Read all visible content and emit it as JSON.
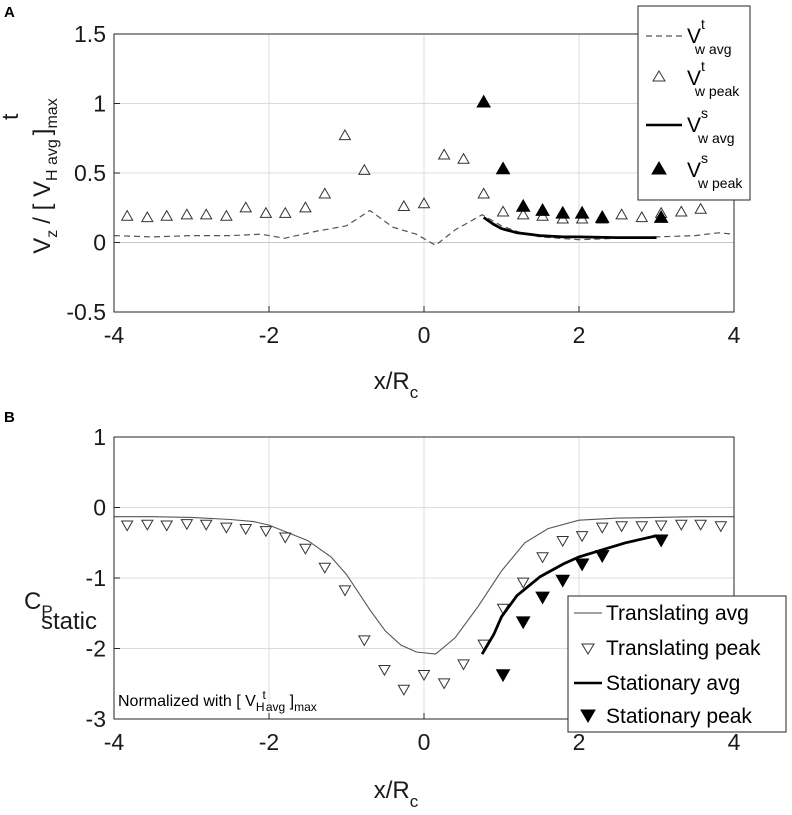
{
  "chart_data": [
    {
      "panel": "A",
      "type": "line",
      "title": "",
      "xlabel": "x/R",
      "xlabel_sub": "c",
      "ylabel": "V_z / [ V^t_H avg ]_max",
      "ylabel_parts": {
        "v": "V",
        "z_sub": "z",
        "slash": "/  [ V",
        "t_sup": "t",
        "h_sub": "H avg",
        "close": "]",
        "max_sub": "max"
      },
      "xlim": [
        -4,
        4
      ],
      "ylim": [
        -0.5,
        1.5
      ],
      "xticks": [
        -4,
        -2,
        0,
        2,
        4
      ],
      "xtick_labels": [
        "-4",
        "-2",
        "0",
        "2",
        "4"
      ],
      "yticks": [
        -0.5,
        0,
        0.5,
        1,
        1.5
      ],
      "ytick_labels": [
        "-0.5",
        "0",
        "0.5",
        "1",
        "1.5"
      ],
      "grid": true,
      "legend_position": "top-right",
      "legend": [
        {
          "key": "trans_avg",
          "base": "V",
          "sup": "t",
          "sub": "w avg"
        },
        {
          "key": "trans_peak",
          "base": "V",
          "sup": "t",
          "sub": "w peak"
        },
        {
          "key": "stat_avg",
          "base": "V",
          "sup": "s",
          "sub": "w avg"
        },
        {
          "key": "stat_peak",
          "base": "V",
          "sup": "s",
          "sub": "w peak"
        }
      ],
      "series": [
        {
          "name": "V^t_w avg",
          "style": "dashed-line",
          "x": [
            -4,
            -3.5,
            -3,
            -2.5,
            -2.1,
            -1.8,
            -1.4,
            -1.0,
            -0.7,
            -0.4,
            -0.1,
            0.15,
            0.4,
            0.75,
            1.0,
            1.25,
            1.5,
            2.0,
            2.5,
            3.0,
            3.5,
            3.8,
            4.0
          ],
          "y": [
            0.05,
            0.04,
            0.05,
            0.05,
            0.06,
            0.03,
            0.08,
            0.12,
            0.23,
            0.11,
            0.06,
            -0.02,
            0.09,
            0.2,
            0.12,
            0.07,
            0.04,
            0.02,
            0.03,
            0.04,
            0.05,
            0.07,
            0.06
          ]
        },
        {
          "name": "V^t_w peak",
          "style": "open-triangle-up",
          "x": [
            -3.83,
            -3.57,
            -3.32,
            -3.06,
            -2.81,
            -2.55,
            -2.3,
            -2.04,
            -1.79,
            -1.53,
            -1.28,
            -1.02,
            -0.77,
            -0.51,
            -0.26,
            0.0,
            0.26,
            0.51,
            0.77,
            1.02,
            1.28,
            1.53,
            1.79,
            2.04,
            2.3,
            2.55,
            2.81,
            3.06,
            3.32,
            3.57,
            3.83
          ],
          "y": [
            0.19,
            0.18,
            0.19,
            0.2,
            0.2,
            0.19,
            0.25,
            0.21,
            0.21,
            0.25,
            0.35,
            0.77,
            0.52,
            null,
            0.26,
            0.28,
            0.63,
            0.6,
            0.35,
            0.22,
            0.2,
            0.19,
            0.17,
            0.17,
            0.17,
            0.2,
            0.18,
            0.21,
            0.22,
            0.24,
            null
          ]
        },
        {
          "name": "V^s_w avg",
          "style": "solid-thick-line",
          "x": [
            0.77,
            0.9,
            1.0,
            1.2,
            1.5,
            1.8,
            2.0,
            2.5,
            3.0
          ],
          "y": [
            0.18,
            0.13,
            0.1,
            0.07,
            0.05,
            0.04,
            0.04,
            0.035,
            0.035
          ]
        },
        {
          "name": "V^s_w peak",
          "style": "filled-triangle-up",
          "x": [
            0.77,
            1.02,
            1.28,
            1.53,
            1.79,
            2.04,
            2.3,
            3.06
          ],
          "y": [
            1.01,
            0.53,
            0.26,
            0.23,
            0.21,
            0.21,
            0.18,
            0.18
          ]
        }
      ]
    },
    {
      "panel": "B",
      "type": "line",
      "title": "",
      "xlabel": "x/R",
      "xlabel_sub": "c",
      "ylabel": "C_P static",
      "ylabel_parts": {
        "c": "C",
        "p_sub": "P",
        "static_sub": "static"
      },
      "xlim": [
        -4,
        4
      ],
      "ylim": [
        -3,
        1
      ],
      "xticks": [
        -4,
        -2,
        0,
        2,
        4
      ],
      "xtick_labels": [
        "-4",
        "-2",
        "0",
        "2",
        "4"
      ],
      "yticks": [
        -3,
        -2,
        -1,
        0,
        1
      ],
      "ytick_labels": [
        "-3",
        "-2",
        "-1",
        "0",
        "1"
      ],
      "grid": true,
      "legend_position": "bottom-right",
      "legend": [
        "Translating avg",
        "Translating peak",
        "Stationary avg",
        "Stationary peak"
      ],
      "annotation": {
        "before": "Normalized with [ V",
        "sub_h": "H",
        "sup_t": "t",
        "sub_avg": "avg",
        "after": " ]",
        "sub_max": "max"
      },
      "series": [
        {
          "name": "Translating avg",
          "style": "thin-line",
          "x": [
            -4,
            -3.5,
            -3,
            -2.5,
            -2.2,
            -2.0,
            -1.5,
            -1.2,
            -1.0,
            -0.7,
            -0.5,
            -0.3,
            -0.1,
            0.15,
            0.4,
            0.7,
            1.0,
            1.3,
            1.6,
            2.0,
            2.5,
            3.0,
            3.5,
            4.0
          ],
          "y": [
            -0.13,
            -0.13,
            -0.14,
            -0.17,
            -0.2,
            -0.25,
            -0.47,
            -0.7,
            -0.95,
            -1.45,
            -1.75,
            -1.95,
            -2.05,
            -2.08,
            -1.85,
            -1.4,
            -0.9,
            -0.5,
            -0.3,
            -0.18,
            -0.15,
            -0.14,
            -0.13,
            -0.13
          ]
        },
        {
          "name": "Translating peak",
          "style": "open-triangle-down",
          "x": [
            -3.83,
            -3.57,
            -3.32,
            -3.06,
            -2.81,
            -2.55,
            -2.3,
            -2.04,
            -1.79,
            -1.53,
            -1.28,
            -1.02,
            -0.77,
            -0.51,
            -0.26,
            0.0,
            0.26,
            0.51,
            0.77,
            1.02,
            1.28,
            1.53,
            1.79,
            2.04,
            2.3,
            2.55,
            2.81,
            3.06,
            3.32,
            3.57,
            3.83
          ],
          "y": [
            -0.25,
            -0.24,
            -0.25,
            -0.23,
            -0.24,
            -0.28,
            -0.3,
            -0.33,
            -0.42,
            -0.58,
            -0.85,
            -1.17,
            -1.88,
            -2.3,
            -2.58,
            -2.37,
            -2.49,
            -2.22,
            -1.94,
            -1.43,
            -1.06,
            -0.7,
            -0.47,
            -0.4,
            -0.28,
            -0.26,
            -0.26,
            -0.25,
            -0.24,
            -0.24,
            -0.26
          ]
        },
        {
          "name": "Stationary avg",
          "style": "solid-thick-line",
          "x": [
            0.75,
            0.9,
            1.0,
            1.2,
            1.5,
            1.8,
            2.0,
            2.3,
            2.6,
            3.0
          ],
          "y": [
            -2.08,
            -1.8,
            -1.55,
            -1.25,
            -0.98,
            -0.8,
            -0.7,
            -0.6,
            -0.5,
            -0.4
          ]
        },
        {
          "name": "Stationary peak",
          "style": "filled-triangle-down",
          "x": [
            1.02,
            1.28,
            1.53,
            1.79,
            2.04,
            2.3,
            3.06
          ],
          "y": [
            -2.37,
            -1.62,
            -1.27,
            -1.03,
            -0.8,
            -0.68,
            -0.46
          ]
        }
      ]
    }
  ]
}
